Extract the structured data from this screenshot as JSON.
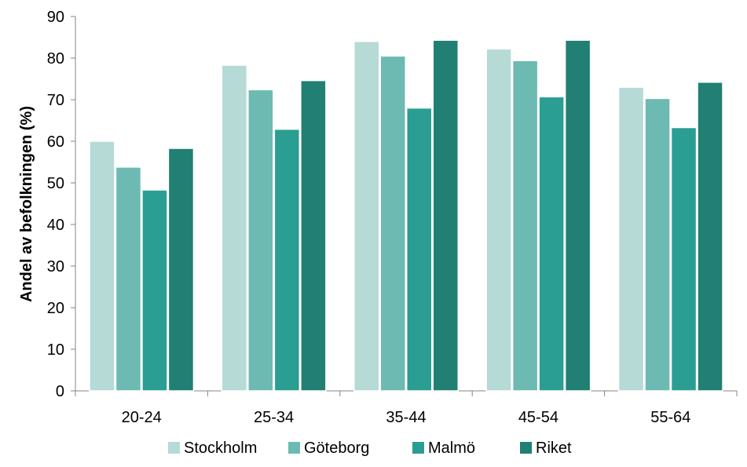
{
  "chart_data": {
    "type": "bar",
    "title": "",
    "xlabel": "",
    "ylabel": "Andel av befolkningen (%)",
    "ylim": [
      0,
      90
    ],
    "yticks": [
      0,
      10,
      20,
      30,
      40,
      50,
      60,
      70,
      80,
      90
    ],
    "categories": [
      "20-24",
      "25-34",
      "35-44",
      "45-54",
      "55-64"
    ],
    "series": [
      {
        "name": "Stockholm",
        "color": "#b6dad6",
        "values": [
          60,
          78.3,
          84,
          82.2,
          73
        ]
      },
      {
        "name": "Göteborg",
        "color": "#6dbab2",
        "values": [
          53.8,
          72.4,
          80.5,
          79.4,
          70.3
        ]
      },
      {
        "name": "Malmö",
        "color": "#2a9e93",
        "values": [
          48.3,
          62.9,
          68,
          70.7,
          63.3
        ]
      },
      {
        "name": "Riket",
        "color": "#217f73",
        "values": [
          58.3,
          74.6,
          84.3,
          84.3,
          74.2
        ]
      }
    ],
    "grid": false,
    "legend": "bottom"
  }
}
